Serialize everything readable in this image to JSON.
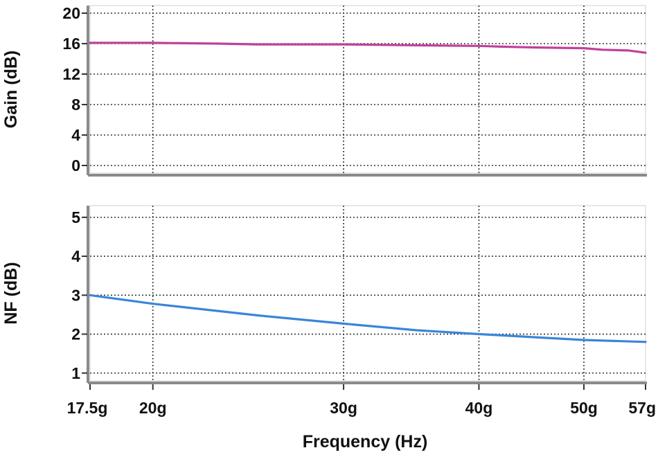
{
  "chart_data": [
    {
      "type": "line",
      "title": "",
      "ylabel": "Gain (dB)",
      "xlabel": "",
      "x_scale": "log",
      "xlim": [
        17.5,
        57
      ],
      "ylim": [
        -1,
        21
      ],
      "yticks": [
        0,
        4,
        8,
        12,
        16,
        20
      ],
      "ytick_labels": [
        "0",
        "4",
        "8",
        "12",
        "16",
        "20"
      ],
      "grid": true,
      "series": [
        {
          "color": "#c0409c",
          "x": [
            17.5,
            20,
            23,
            25,
            30,
            34,
            40,
            42,
            45,
            50,
            52,
            55,
            57
          ],
          "y": [
            16.1,
            16.1,
            16.0,
            15.9,
            15.9,
            15.8,
            15.7,
            15.6,
            15.5,
            15.4,
            15.2,
            15.1,
            14.8
          ]
        }
      ]
    },
    {
      "type": "line",
      "title": "",
      "ylabel": "NF (dB)",
      "xlabel": "Frequency (Hz)",
      "x_scale": "log",
      "xlim": [
        17.5,
        57
      ],
      "ylim": [
        0.8,
        5.3
      ],
      "yticks": [
        1,
        2,
        3,
        4,
        5
      ],
      "ytick_labels": [
        "1",
        "2",
        "3",
        "4",
        "5"
      ],
      "xticks": [
        17.5,
        20,
        30,
        40,
        50,
        57
      ],
      "xtick_labels": [
        "17.5g",
        "20g",
        "30g",
        "40g",
        "50g",
        "57g"
      ],
      "grid": true,
      "series": [
        {
          "color": "#3a85d8",
          "x": [
            17.5,
            20,
            25,
            30,
            35,
            40,
            45,
            50,
            57
          ],
          "y": [
            3.0,
            2.78,
            2.48,
            2.27,
            2.1,
            2.0,
            1.92,
            1.85,
            1.8
          ]
        }
      ]
    }
  ]
}
